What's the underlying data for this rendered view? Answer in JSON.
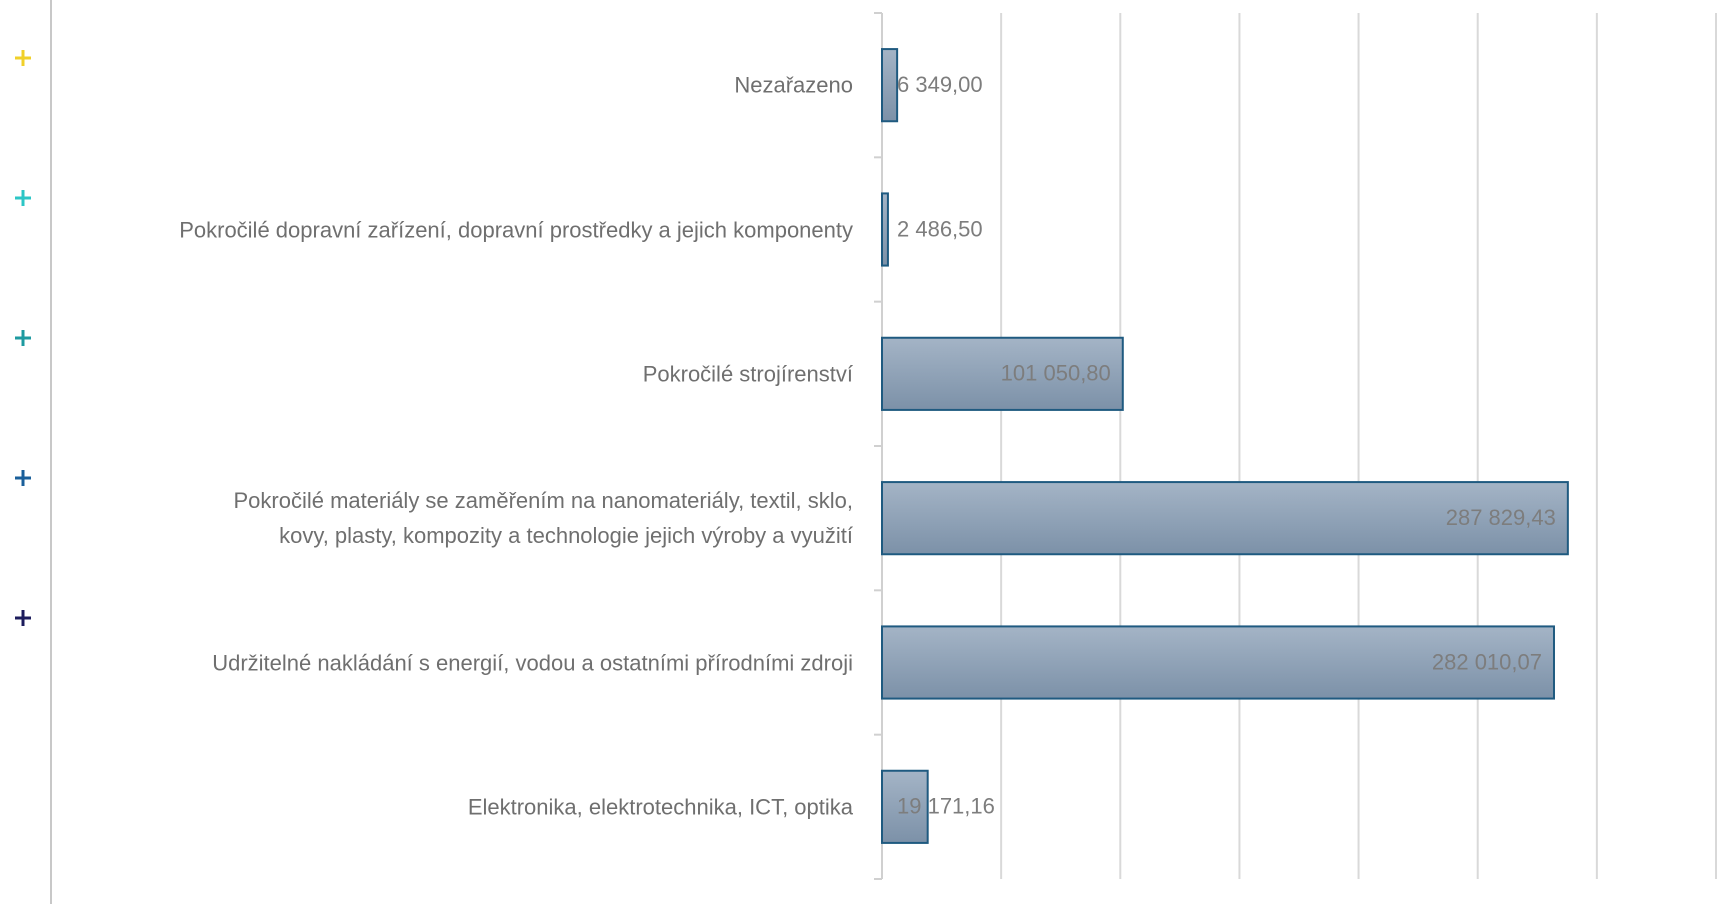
{
  "chart_data": {
    "type": "bar",
    "orientation": "horizontal",
    "categories": [
      "Nezařazeno",
      "Pokročilé dopravní zařízení, dopravní prostředky a jejich komponenty",
      "Pokročilé strojírenství",
      "Pokročilé materiály se zaměřením na nanomateriály, textil, sklo, kovy, plasty, kompozity a technologie jejich výroby a využití",
      "Udržitelné nakládání s energií, vodou a ostatními přírodními zdroji",
      "Elektronika, elektrotechnika, ICT, optika"
    ],
    "values": [
      6349.0,
      2486.5,
      101050.8,
      287829.43,
      282010.07,
      19171.16
    ],
    "value_labels": [
      "6 349,00",
      "2 486,50",
      "101 050,80",
      "287 829,43",
      "282 010,07",
      "19 171,16"
    ],
    "color": "#8ea1b6",
    "xlim": [
      0,
      350000
    ],
    "xticks": [
      0,
      50000,
      100000,
      150000,
      200000,
      250000,
      300000,
      350000
    ],
    "grid": true
  }
}
